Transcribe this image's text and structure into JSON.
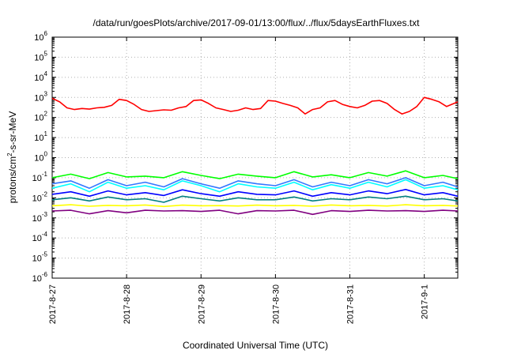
{
  "chart_data": {
    "type": "line",
    "title": "/data/run/goesPlots/archive/2017-09-01/13:00/flux/../flux/5daysEarthFluxes.txt",
    "xlabel": "Coordinated Universal Time (UTC)",
    "ylabel": "protons/cm²-s-sr-MeV",
    "ylabel_parts": {
      "pre": "protons/cm",
      "sup": "2",
      "post": "-s-sr-MeV"
    },
    "yscale": "log",
    "ylim": [
      1e-06,
      1000000.0
    ],
    "y_tick_exponents": [
      -6,
      -5,
      -4,
      -3,
      -2,
      -1,
      0,
      1,
      2,
      3,
      4,
      5,
      6
    ],
    "y_tick_base": "10",
    "x_range_days": [
      0,
      5.45
    ],
    "x_ticks": [
      {
        "label": "2017-8-27",
        "day": 0
      },
      {
        "label": "2017-8-28",
        "day": 1
      },
      {
        "label": "2017-8-29",
        "day": 2
      },
      {
        "label": "2017-8-30",
        "day": 3
      },
      {
        "label": "2017-8-31",
        "day": 4
      },
      {
        "label": "2017-9-1",
        "day": 5
      }
    ],
    "grid": true,
    "series": [
      {
        "color": "#ff0000",
        "x": [
          0.0,
          0.1,
          0.2,
          0.3,
          0.4,
          0.5,
          0.6,
          0.7,
          0.8,
          0.9,
          1.0,
          1.1,
          1.2,
          1.3,
          1.4,
          1.5,
          1.6,
          1.7,
          1.8,
          1.9,
          2.0,
          2.1,
          2.2,
          2.3,
          2.4,
          2.5,
          2.6,
          2.7,
          2.8,
          2.9,
          3.0,
          3.1,
          3.2,
          3.3,
          3.4,
          3.5,
          3.6,
          3.7,
          3.8,
          3.9,
          4.0,
          4.1,
          4.2,
          4.3,
          4.4,
          4.5,
          4.6,
          4.7,
          4.8,
          4.9,
          5.0,
          5.1,
          5.2,
          5.3,
          5.4,
          5.45
        ],
        "y": [
          900,
          600,
          300,
          250,
          280,
          260,
          300,
          320,
          400,
          800,
          700,
          450,
          250,
          200,
          220,
          240,
          230,
          300,
          350,
          700,
          750,
          500,
          300,
          250,
          200,
          230,
          300,
          250,
          280,
          700,
          650,
          500,
          400,
          300,
          150,
          250,
          300,
          600,
          700,
          450,
          350,
          300,
          400,
          650,
          700,
          500,
          250,
          150,
          200,
          350,
          1000,
          800,
          600,
          350,
          500,
          600
        ]
      },
      {
        "color": "#00ff00",
        "x": [
          0.0,
          0.25,
          0.5,
          0.75,
          1.0,
          1.25,
          1.5,
          1.75,
          2.0,
          2.25,
          2.5,
          2.75,
          3.0,
          3.25,
          3.5,
          3.75,
          4.0,
          4.25,
          4.5,
          4.75,
          5.0,
          5.25,
          5.45
        ],
        "y": [
          0.1,
          0.15,
          0.09,
          0.18,
          0.11,
          0.12,
          0.1,
          0.2,
          0.13,
          0.09,
          0.15,
          0.12,
          0.1,
          0.2,
          0.11,
          0.14,
          0.1,
          0.18,
          0.12,
          0.22,
          0.1,
          0.13,
          0.09
        ]
      },
      {
        "color": "#00ffff",
        "x": [
          0.0,
          0.25,
          0.5,
          0.75,
          1.0,
          1.25,
          1.5,
          1.75,
          2.0,
          2.25,
          2.5,
          2.75,
          3.0,
          3.25,
          3.5,
          3.75,
          4.0,
          4.25,
          4.5,
          4.75,
          5.0,
          5.25,
          5.45
        ],
        "y": [
          0.03,
          0.05,
          0.02,
          0.06,
          0.03,
          0.04,
          0.025,
          0.07,
          0.04,
          0.02,
          0.05,
          0.035,
          0.03,
          0.06,
          0.025,
          0.045,
          0.03,
          0.06,
          0.035,
          0.08,
          0.03,
          0.04,
          0.025
        ]
      },
      {
        "color": "#3377ff",
        "x": [
          0.0,
          0.25,
          0.5,
          0.75,
          1.0,
          1.25,
          1.5,
          1.75,
          2.0,
          2.25,
          2.5,
          2.75,
          3.0,
          3.25,
          3.5,
          3.75,
          4.0,
          4.25,
          4.5,
          4.75,
          5.0,
          5.25,
          5.45
        ],
        "y": [
          0.05,
          0.07,
          0.03,
          0.08,
          0.04,
          0.06,
          0.035,
          0.09,
          0.05,
          0.03,
          0.07,
          0.05,
          0.04,
          0.08,
          0.035,
          0.06,
          0.04,
          0.08,
          0.05,
          0.1,
          0.04,
          0.06,
          0.035
        ]
      },
      {
        "color": "#0000ff",
        "x": [
          0.0,
          0.25,
          0.5,
          0.75,
          1.0,
          1.25,
          1.5,
          1.75,
          2.0,
          2.25,
          2.5,
          2.75,
          3.0,
          3.25,
          3.5,
          3.75,
          4.0,
          4.25,
          4.5,
          4.75,
          5.0,
          5.25,
          5.45
        ],
        "y": [
          0.015,
          0.02,
          0.012,
          0.022,
          0.014,
          0.018,
          0.013,
          0.025,
          0.016,
          0.012,
          0.02,
          0.015,
          0.014,
          0.022,
          0.012,
          0.018,
          0.014,
          0.022,
          0.016,
          0.026,
          0.014,
          0.018,
          0.012
        ]
      },
      {
        "color": "#008080",
        "x": [
          0.0,
          0.25,
          0.5,
          0.75,
          1.0,
          1.25,
          1.5,
          1.75,
          2.0,
          2.25,
          2.5,
          2.75,
          3.0,
          3.25,
          3.5,
          3.75,
          4.0,
          4.25,
          4.5,
          4.75,
          5.0,
          5.25,
          5.45
        ],
        "y": [
          0.008,
          0.01,
          0.007,
          0.011,
          0.008,
          0.009,
          0.006,
          0.012,
          0.009,
          0.007,
          0.01,
          0.008,
          0.008,
          0.011,
          0.007,
          0.009,
          0.008,
          0.011,
          0.009,
          0.012,
          0.008,
          0.009,
          0.007
        ]
      },
      {
        "color": "#ffff00",
        "x": [
          0.0,
          0.25,
          0.5,
          0.75,
          1.0,
          1.25,
          1.5,
          1.75,
          2.0,
          2.25,
          2.5,
          2.75,
          3.0,
          3.25,
          3.5,
          3.75,
          4.0,
          4.25,
          4.5,
          4.75,
          5.0,
          5.25,
          5.45
        ],
        "y": [
          0.004,
          0.0045,
          0.0038,
          0.0042,
          0.004,
          0.0044,
          0.0037,
          0.0043,
          0.004,
          0.0041,
          0.0039,
          0.0043,
          0.004,
          0.0042,
          0.0038,
          0.0044,
          0.004,
          0.0042,
          0.0039,
          0.0045,
          0.004,
          0.0042,
          0.0039
        ]
      },
      {
        "color": "#800080",
        "x": [
          0.0,
          0.25,
          0.5,
          0.75,
          1.0,
          1.25,
          1.5,
          1.75,
          2.0,
          2.25,
          2.5,
          2.75,
          3.0,
          3.25,
          3.5,
          3.75,
          4.0,
          4.25,
          4.5,
          4.75,
          5.0,
          5.25,
          5.45
        ],
        "y": [
          0.0022,
          0.0024,
          0.0016,
          0.0023,
          0.0018,
          0.0024,
          0.0022,
          0.0023,
          0.0021,
          0.0024,
          0.0016,
          0.0023,
          0.0022,
          0.0024,
          0.0015,
          0.0023,
          0.0021,
          0.0024,
          0.0022,
          0.0023,
          0.0021,
          0.0024,
          0.0022
        ]
      }
    ]
  }
}
